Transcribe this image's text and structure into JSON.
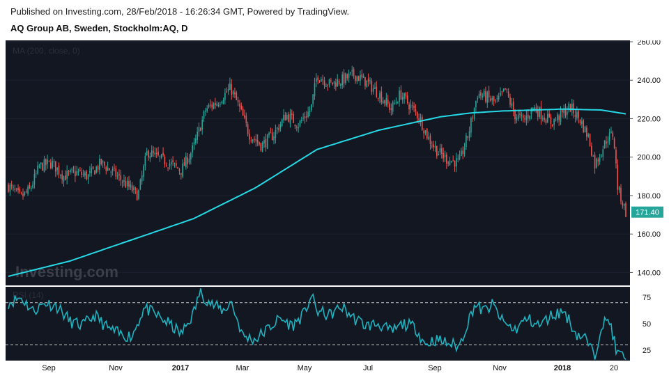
{
  "header": {
    "published": "Published on Investing.com, 28/Feb/2018 - 16:26:34 GMT, Powered by TradingView.",
    "symbol": "AQ Group AB, Sweden, Stockholm:AQ, D"
  },
  "colors": {
    "background": "#131722",
    "up": "#26a69a",
    "down": "#ef5350",
    "ma": "#26d9e6",
    "rsi": "#1fb2bf",
    "price_tag": "#26a69a",
    "axis_text": "#111111"
  },
  "chart_data": [
    {
      "type": "candlestick",
      "indicator_label": "MA (200, close, 0)",
      "watermark": "Investing.com",
      "y_ticks": [
        "260.00",
        "240.00",
        "220.00",
        "200.00",
        "180.00",
        "160.00",
        "140.00"
      ],
      "ylim": [
        134,
        260
      ],
      "last_price": "171.40",
      "x_ticks": [
        "Sep",
        "Nov",
        "2017",
        "Mar",
        "May",
        "Jul",
        "Sep",
        "Nov",
        "2018",
        "20"
      ],
      "price_path": [
        {
          "t": 0,
          "v": 185
        },
        {
          "t": 0.02,
          "v": 179
        },
        {
          "t": 0.035,
          "v": 183
        },
        {
          "t": 0.05,
          "v": 195
        },
        {
          "t": 0.07,
          "v": 197
        },
        {
          "t": 0.09,
          "v": 190
        },
        {
          "t": 0.11,
          "v": 192
        },
        {
          "t": 0.13,
          "v": 190
        },
        {
          "t": 0.15,
          "v": 197
        },
        {
          "t": 0.17,
          "v": 192
        },
        {
          "t": 0.19,
          "v": 186
        },
        {
          "t": 0.21,
          "v": 180
        },
        {
          "t": 0.225,
          "v": 203
        },
        {
          "t": 0.24,
          "v": 200
        },
        {
          "t": 0.26,
          "v": 197
        },
        {
          "t": 0.28,
          "v": 193
        },
        {
          "t": 0.3,
          "v": 205
        },
        {
          "t": 0.32,
          "v": 225
        },
        {
          "t": 0.34,
          "v": 229
        },
        {
          "t": 0.36,
          "v": 236
        },
        {
          "t": 0.375,
          "v": 225
        },
        {
          "t": 0.39,
          "v": 212
        },
        {
          "t": 0.41,
          "v": 206
        },
        {
          "t": 0.43,
          "v": 212
        },
        {
          "t": 0.45,
          "v": 222
        },
        {
          "t": 0.47,
          "v": 217
        },
        {
          "t": 0.49,
          "v": 225
        },
        {
          "t": 0.5,
          "v": 243
        },
        {
          "t": 0.52,
          "v": 238
        },
        {
          "t": 0.54,
          "v": 240
        },
        {
          "t": 0.56,
          "v": 243
        },
        {
          "t": 0.58,
          "v": 239
        },
        {
          "t": 0.6,
          "v": 233
        },
        {
          "t": 0.62,
          "v": 225
        },
        {
          "t": 0.635,
          "v": 233
        },
        {
          "t": 0.65,
          "v": 227
        },
        {
          "t": 0.665,
          "v": 221
        },
        {
          "t": 0.68,
          "v": 210
        },
        {
          "t": 0.695,
          "v": 203
        },
        {
          "t": 0.71,
          "v": 199
        },
        {
          "t": 0.73,
          "v": 197
        },
        {
          "t": 0.745,
          "v": 212
        },
        {
          "t": 0.76,
          "v": 233
        },
        {
          "t": 0.775,
          "v": 231
        },
        {
          "t": 0.79,
          "v": 228
        },
        {
          "t": 0.805,
          "v": 235
        },
        {
          "t": 0.82,
          "v": 222
        },
        {
          "t": 0.835,
          "v": 219
        },
        {
          "t": 0.85,
          "v": 226
        },
        {
          "t": 0.865,
          "v": 222
        },
        {
          "t": 0.88,
          "v": 218
        },
        {
          "t": 0.895,
          "v": 222
        },
        {
          "t": 0.91,
          "v": 226
        },
        {
          "t": 0.925,
          "v": 220
        },
        {
          "t": 0.94,
          "v": 210
        },
        {
          "t": 0.95,
          "v": 196
        },
        {
          "t": 0.96,
          "v": 203
        },
        {
          "t": 0.97,
          "v": 210
        },
        {
          "t": 0.98,
          "v": 212
        },
        {
          "t": 0.987,
          "v": 184
        },
        {
          "t": 1.0,
          "v": 171.4
        }
      ],
      "ma_200": [
        {
          "t": 0,
          "v": 138
        },
        {
          "t": 0.1,
          "v": 146
        },
        {
          "t": 0.2,
          "v": 157
        },
        {
          "t": 0.3,
          "v": 168
        },
        {
          "t": 0.4,
          "v": 184
        },
        {
          "t": 0.5,
          "v": 204
        },
        {
          "t": 0.6,
          "v": 214
        },
        {
          "t": 0.7,
          "v": 221
        },
        {
          "t": 0.75,
          "v": 223
        },
        {
          "t": 0.8,
          "v": 224
        },
        {
          "t": 0.9,
          "v": 225
        },
        {
          "t": 0.96,
          "v": 224.5
        },
        {
          "t": 1.0,
          "v": 222.5
        }
      ]
    },
    {
      "type": "line",
      "indicator_label": "RSI (14)",
      "ylim": [
        15,
        85
      ],
      "y_ticks": [
        "75",
        "50",
        "25"
      ],
      "levels": [
        70,
        30
      ],
      "rsi_path": [
        {
          "t": 0,
          "v": 70
        },
        {
          "t": 0.02,
          "v": 75
        },
        {
          "t": 0.04,
          "v": 62
        },
        {
          "t": 0.06,
          "v": 70
        },
        {
          "t": 0.08,
          "v": 66
        },
        {
          "t": 0.1,
          "v": 52
        },
        {
          "t": 0.12,
          "v": 48
        },
        {
          "t": 0.14,
          "v": 58
        },
        {
          "t": 0.16,
          "v": 46
        },
        {
          "t": 0.18,
          "v": 40
        },
        {
          "t": 0.2,
          "v": 38
        },
        {
          "t": 0.22,
          "v": 65
        },
        {
          "t": 0.24,
          "v": 58
        },
        {
          "t": 0.26,
          "v": 50
        },
        {
          "t": 0.28,
          "v": 40
        },
        {
          "t": 0.3,
          "v": 60
        },
        {
          "t": 0.31,
          "v": 80
        },
        {
          "t": 0.33,
          "v": 68
        },
        {
          "t": 0.35,
          "v": 62
        },
        {
          "t": 0.36,
          "v": 72
        },
        {
          "t": 0.38,
          "v": 38
        },
        {
          "t": 0.4,
          "v": 35
        },
        {
          "t": 0.42,
          "v": 45
        },
        {
          "t": 0.44,
          "v": 55
        },
        {
          "t": 0.46,
          "v": 48
        },
        {
          "t": 0.48,
          "v": 60
        },
        {
          "t": 0.49,
          "v": 77
        },
        {
          "t": 0.5,
          "v": 62
        },
        {
          "t": 0.52,
          "v": 58
        },
        {
          "t": 0.54,
          "v": 66
        },
        {
          "t": 0.56,
          "v": 55
        },
        {
          "t": 0.58,
          "v": 48
        },
        {
          "t": 0.6,
          "v": 50
        },
        {
          "t": 0.62,
          "v": 42
        },
        {
          "t": 0.64,
          "v": 50
        },
        {
          "t": 0.66,
          "v": 46
        },
        {
          "t": 0.675,
          "v": 30
        },
        {
          "t": 0.69,
          "v": 35
        },
        {
          "t": 0.71,
          "v": 32
        },
        {
          "t": 0.73,
          "v": 28
        },
        {
          "t": 0.74,
          "v": 45
        },
        {
          "t": 0.755,
          "v": 68
        },
        {
          "t": 0.77,
          "v": 62
        },
        {
          "t": 0.785,
          "v": 68
        },
        {
          "t": 0.8,
          "v": 52
        },
        {
          "t": 0.82,
          "v": 44
        },
        {
          "t": 0.84,
          "v": 55
        },
        {
          "t": 0.86,
          "v": 48
        },
        {
          "t": 0.88,
          "v": 58
        },
        {
          "t": 0.9,
          "v": 62
        },
        {
          "t": 0.92,
          "v": 40
        },
        {
          "t": 0.935,
          "v": 36
        },
        {
          "t": 0.95,
          "v": 18
        },
        {
          "t": 0.96,
          "v": 50
        },
        {
          "t": 0.975,
          "v": 52
        },
        {
          "t": 0.985,
          "v": 22
        },
        {
          "t": 1.0,
          "v": 18
        }
      ]
    }
  ]
}
